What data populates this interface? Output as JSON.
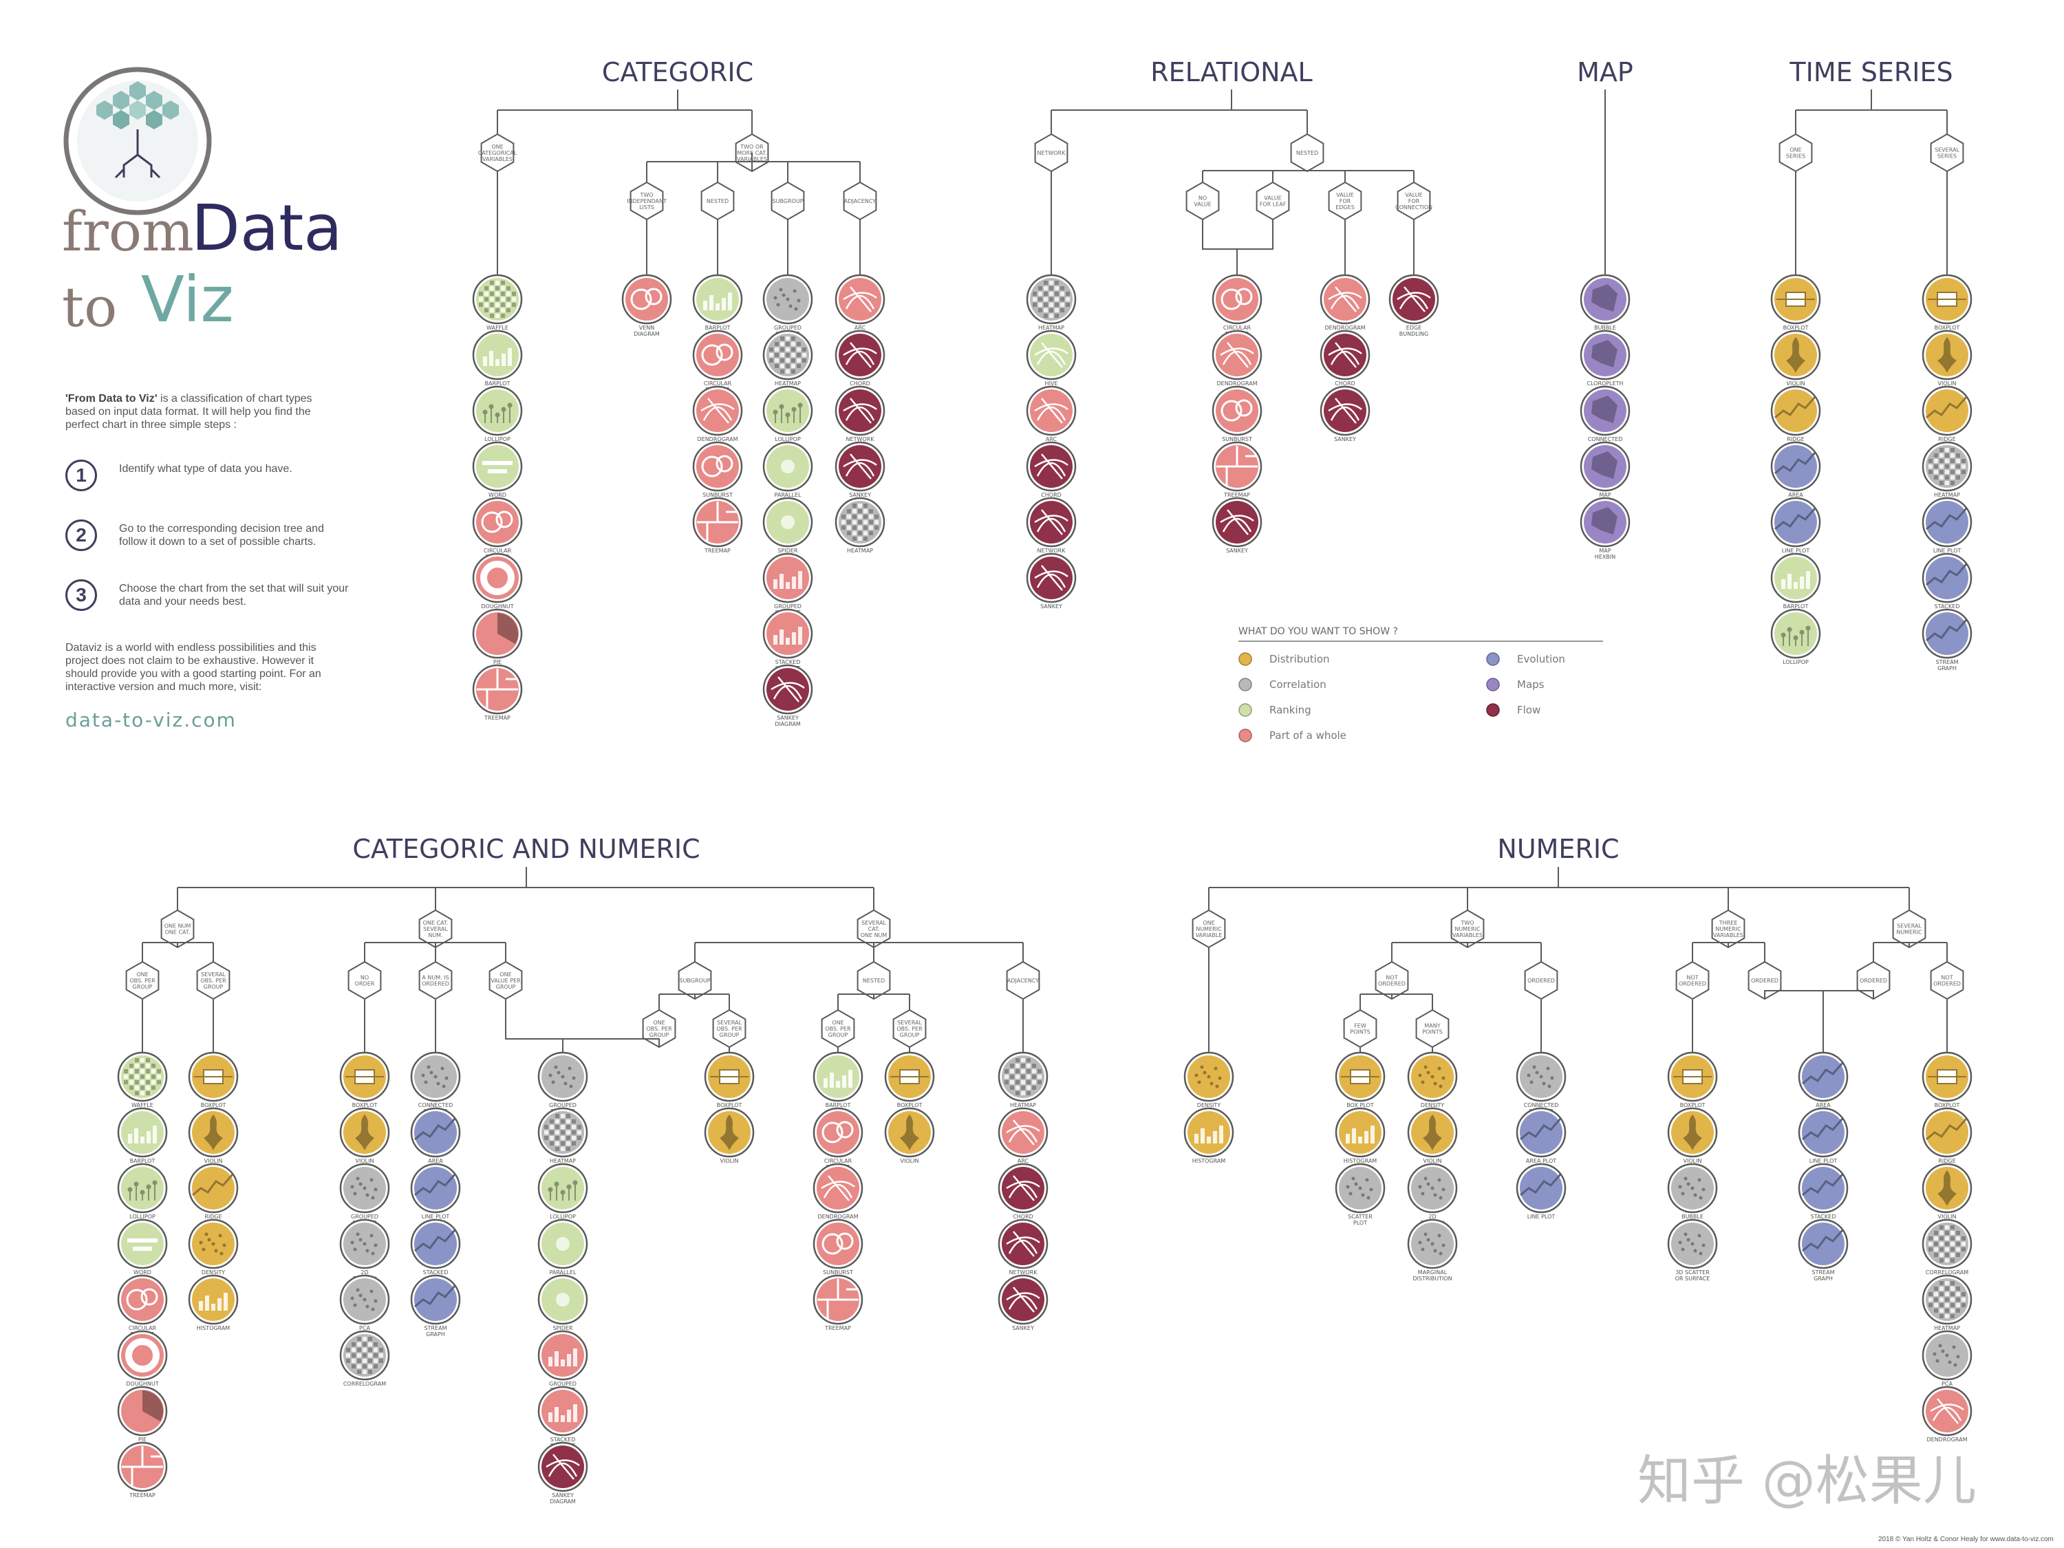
{
  "intro": {
    "title_part1": "from",
    "title_part2": "Data",
    "title_part3": "to",
    "title_part4": "Viz",
    "description_bold": "'From Data to Viz'",
    "description_rest": " is a classification of chart types based on input data format. It will help you find the perfect chart in three simple steps :",
    "steps": [
      {
        "number": "1",
        "text": "Identify what type of data you have."
      },
      {
        "number": "2",
        "text": "Go to the corresponding decision tree and follow it down to a set of possible charts."
      },
      {
        "number": "3",
        "text": "Choose the chart from the set that will suit your data and your needs best."
      }
    ],
    "closing": "Dataviz is a world with endless possibilities and this project does not claim to be exhaustive. However it should provide you with a good starting point. For an interactive version and much more, visit:",
    "site": "data-to-viz.com"
  },
  "colors": {
    "Distribution": "#e2b54a",
    "Correlation": "#b9b9b9",
    "Ranking": "#cde0a9",
    "Part of a whole": "#e78a88",
    "Evolution": "#8a94c6",
    "Maps": "#9a86c4",
    "Flow": "#8e3149"
  },
  "legend": {
    "title": "WHAT DO YOU WANT TO SHOW ?",
    "items": [
      {
        "label": "Distribution",
        "cat": "Distribution"
      },
      {
        "label": "Correlation",
        "cat": "Correlation"
      },
      {
        "label": "Ranking",
        "cat": "Ranking"
      },
      {
        "label": "Part of a whole",
        "cat": "Part of a whole"
      },
      {
        "label": "Evolution",
        "cat": "Evolution"
      },
      {
        "label": "Maps",
        "cat": "Maps"
      },
      {
        "label": "Flow",
        "cat": "Flow"
      }
    ]
  },
  "sections": [
    {
      "title": "CATEGORIC",
      "hexes": [
        [
          "ONE",
          "CATEGORICAL",
          "VARIABLES"
        ],
        [
          "TWO OR",
          "MORE CAT.",
          "VARIABLES"
        ],
        [
          "TWO",
          "INDEPENDANT",
          "LISTS"
        ],
        [
          "NESTED"
        ],
        [
          "SUBGROUP"
        ],
        [
          "ADJACENCY"
        ]
      ],
      "columns": [
        [
          [
            "WAFFLE",
            "Ranking"
          ],
          [
            "BARPLOT",
            "Ranking"
          ],
          [
            "LOLLIPOP",
            "Ranking"
          ],
          [
            "WORD CLOUD",
            "Ranking"
          ],
          [
            "CIRCULAR PACKING",
            "Part of a whole"
          ],
          [
            "DOUGHNUT",
            "Part of a whole"
          ],
          [
            "PIE",
            "Part of a whole"
          ],
          [
            "TREEMAP",
            "Part of a whole"
          ]
        ],
        [
          [
            "VENN DIAGRAM",
            "Part of a whole"
          ]
        ],
        [
          [
            "BARPLOT",
            "Ranking"
          ],
          [
            "CIRCULAR PACKING",
            "Part of a whole"
          ],
          [
            "DENDROGRAM",
            "Part of a whole"
          ],
          [
            "SUNBURST",
            "Part of a whole"
          ],
          [
            "TREEMAP",
            "Part of a whole"
          ]
        ],
        [
          [
            "GROUPED SCATTER",
            "Correlation"
          ],
          [
            "HEATMAP",
            "Correlation"
          ],
          [
            "LOLLIPOP",
            "Ranking"
          ],
          [
            "PARALLEL PLOT",
            "Ranking"
          ],
          [
            "SPIDER PLOT",
            "Ranking"
          ],
          [
            "GROUPED BARPLOT",
            "Part of a whole"
          ],
          [
            "STACKED BARPLOT",
            "Part of a whole"
          ],
          [
            "SANKEY DIAGRAM",
            "Flow"
          ]
        ],
        [
          [
            "ARC",
            "Part of a whole"
          ],
          [
            "CHORD",
            "Flow"
          ],
          [
            "NETWORK",
            "Flow"
          ],
          [
            "SANKEY",
            "Flow"
          ],
          [
            "HEATMAP",
            "Correlation"
          ]
        ]
      ]
    },
    {
      "title": "RELATIONAL",
      "hexes": [
        [
          "NETWORK"
        ],
        [
          "NESTED"
        ],
        [
          "NO",
          "VALUE"
        ],
        [
          "VALUE",
          "FOR LEAF"
        ],
        [
          "VALUE",
          "FOR",
          "EDGES"
        ],
        [
          "VALUE",
          "FOR",
          "CONNECTION"
        ]
      ],
      "columns": [
        [
          [
            "HEATMAP",
            "Correlation"
          ],
          [
            "HIVE",
            "Ranking"
          ],
          [
            "ARC",
            "Part of a whole"
          ],
          [
            "CHORD",
            "Flow"
          ],
          [
            "NETWORK",
            "Flow"
          ],
          [
            "SANKEY",
            "Flow"
          ]
        ],
        [
          [
            "CIRCULAR PACKING",
            "Part of a whole"
          ],
          [
            "DENDROGRAM",
            "Part of a whole"
          ],
          [
            "SUNBURST",
            "Part of a whole"
          ],
          [
            "TREEMAP",
            "Part of a whole"
          ],
          [
            "SANKEY",
            "Flow"
          ]
        ],
        [
          [
            "DENDROGRAM",
            "Part of a whole"
          ],
          [
            "CHORD",
            "Flow"
          ],
          [
            "SANKEY",
            "Flow"
          ]
        ],
        [
          [
            "EDGE BUNDLING",
            "Flow"
          ]
        ]
      ]
    },
    {
      "title": "MAP",
      "columns": [
        [
          [
            "BUBBLE MAP",
            "Maps"
          ],
          [
            "CLOROPLETH",
            "Maps"
          ],
          [
            "CONNECTED MAP",
            "Maps"
          ],
          [
            "MAP",
            "Maps"
          ],
          [
            "MAP HEXBIN",
            "Maps"
          ]
        ]
      ]
    },
    {
      "title": "TIME SERIES",
      "hexes": [
        [
          "ONE",
          "SERIES"
        ],
        [
          "SEVERAL",
          "SERIES"
        ]
      ],
      "columns": [
        [
          [
            "BOXPLOT",
            "Distribution"
          ],
          [
            "VIOLIN",
            "Distribution"
          ],
          [
            "RIDGE LINE",
            "Distribution"
          ],
          [
            "AREA",
            "Evolution"
          ],
          [
            "LINE PLOT",
            "Evolution"
          ],
          [
            "BARPLOT",
            "Ranking"
          ],
          [
            "LOLLIPOP",
            "Ranking"
          ]
        ],
        [
          [
            "BOXPLOT",
            "Distribution"
          ],
          [
            "VIOLIN",
            "Distribution"
          ],
          [
            "RIDGE LINE",
            "Distribution"
          ],
          [
            "HEATMAP",
            "Correlation"
          ],
          [
            "LINE PLOT",
            "Evolution"
          ],
          [
            "STACKED AREA",
            "Evolution"
          ],
          [
            "STREAM GRAPH",
            "Evolution"
          ]
        ]
      ]
    },
    {
      "title": "CATEGORIC AND NUMERIC",
      "hexes": [
        [
          "ONE NUM",
          "ONE CAT."
        ],
        [
          "ONE CAT.",
          "SEVERAL",
          "NUM."
        ],
        [
          "SEVERAL",
          "CAT.",
          "ONE NUM"
        ],
        [
          "ONE",
          "OBS. PER",
          "GROUP"
        ],
        [
          "SEVERAL",
          "OBS. PER",
          "GROUP"
        ],
        [
          "NO",
          "ORDER"
        ],
        [
          "A NUM. IS",
          "ORDERED"
        ],
        [
          "ONE",
          "VALUE PER",
          "GROUP"
        ],
        [
          "SUBGROUP"
        ],
        [
          "NESTED"
        ],
        [
          "ADJACENCY"
        ],
        [
          "ONE",
          "OBS. PER",
          "GROUP"
        ],
        [
          "SEVERAL",
          "OBS. PER",
          "GROUP"
        ],
        [
          "ONE",
          "OBS. PER",
          "GROUP"
        ],
        [
          "SEVERAL",
          "OBS. PER",
          "GROUP"
        ]
      ],
      "columns": [
        [
          [
            "WAFFLE",
            "Ranking"
          ],
          [
            "BARPLOT",
            "Ranking"
          ],
          [
            "LOLLIPOP",
            "Ranking"
          ],
          [
            "WORD CLOUD",
            "Ranking"
          ],
          [
            "CIRCULAR PACKING",
            "Part of a whole"
          ],
          [
            "DOUGHNUT",
            "Part of a whole"
          ],
          [
            "PIE",
            "Part of a whole"
          ],
          [
            "TREEMAP",
            "Part of a whole"
          ]
        ],
        [
          [
            "BOXPLOT",
            "Distribution"
          ],
          [
            "VIOLIN",
            "Distribution"
          ],
          [
            "RIDGE LINE",
            "Distribution"
          ],
          [
            "DENSITY",
            "Distribution"
          ],
          [
            "HISTOGRAM",
            "Distribution"
          ]
        ],
        [
          [
            "BOXPLOT",
            "Distribution"
          ],
          [
            "VIOLIN",
            "Distribution"
          ],
          [
            "GROUPED SCATTER",
            "Correlation"
          ],
          [
            "2D DENSITY",
            "Correlation"
          ],
          [
            "PCA",
            "Correlation"
          ],
          [
            "CORRELOGRAM",
            "Correlation"
          ]
        ],
        [
          [
            "CONNECTED SCATTER",
            "Correlation"
          ],
          [
            "AREA",
            "Evolution"
          ],
          [
            "LINE PLOT",
            "Evolution"
          ],
          [
            "STACKED AREA",
            "Evolution"
          ],
          [
            "STREAM GRAPH",
            "Evolution"
          ]
        ],
        [
          [
            "GROUPED SCATTER",
            "Correlation"
          ],
          [
            "HEATMAP",
            "Correlation"
          ],
          [
            "LOLLIPOP",
            "Ranking"
          ],
          [
            "PARALLEL PLOT",
            "Ranking"
          ],
          [
            "SPIDER PLOT",
            "Ranking"
          ],
          [
            "GROUPED BARPLOT",
            "Part of a whole"
          ],
          [
            "STACKED BARPLOT",
            "Part of a whole"
          ],
          [
            "SANKEY DIAGRAM",
            "Flow"
          ]
        ],
        [
          [
            "BOXPLOT",
            "Distribution"
          ],
          [
            "VIOLIN",
            "Distribution"
          ]
        ],
        [
          [
            "BARPLOT",
            "Ranking"
          ],
          [
            "CIRCULAR PACKING",
            "Part of a whole"
          ],
          [
            "DENDROGRAM",
            "Part of a whole"
          ],
          [
            "SUNBURST",
            "Part of a whole"
          ],
          [
            "TREEMAP",
            "Part of a whole"
          ]
        ],
        [
          [
            "BOXPLOT",
            "Distribution"
          ],
          [
            "VIOLIN",
            "Distribution"
          ]
        ],
        [
          [
            "HEATMAP",
            "Correlation"
          ],
          [
            "ARC",
            "Part of a whole"
          ],
          [
            "CHORD",
            "Flow"
          ],
          [
            "NETWORK",
            "Flow"
          ],
          [
            "SANKEY",
            "Flow"
          ]
        ]
      ]
    },
    {
      "title": "NUMERIC",
      "hexes": [
        [
          "ONE",
          "NUMERIC",
          "VARIABLE"
        ],
        [
          "TWO",
          "NUMERIC",
          "VARIABLES"
        ],
        [
          "THREE",
          "NUMERIC",
          "VARIABLES"
        ],
        [
          "SEVERAL",
          "NUMERIC"
        ],
        [
          "NOT",
          "ORDERED"
        ],
        [
          "ORDERED"
        ],
        [
          "FEW",
          "POINTS"
        ],
        [
          "MANY",
          "POINTS"
        ],
        [
          "NOT",
          "ORDERED"
        ],
        [
          "ORDERED"
        ],
        [
          "ORDERED"
        ],
        [
          "NOT",
          "ORDERED"
        ]
      ],
      "columns": [
        [
          [
            "DENSITY",
            "Distribution"
          ],
          [
            "HISTOGRAM",
            "Distribution"
          ]
        ],
        [
          [
            "BOX PLOT",
            "Distribution"
          ],
          [
            "HISTOGRAM",
            "Distribution"
          ],
          [
            "SCATTER PLOT",
            "Correlation"
          ]
        ],
        [
          [
            "DENSITY",
            "Distribution"
          ],
          [
            "VIOLIN",
            "Distribution"
          ],
          [
            "2D DENSITY",
            "Correlation"
          ],
          [
            "MARGINAL DISTRIBUTION",
            "Correlation"
          ]
        ],
        [
          [
            "CONNECTED SCATTER",
            "Correlation"
          ],
          [
            "AREA PLOT",
            "Evolution"
          ],
          [
            "LINE PLOT",
            "Evolution"
          ]
        ],
        [
          [
            "BOXPLOT",
            "Distribution"
          ],
          [
            "VIOLIN",
            "Distribution"
          ],
          [
            "BUBBLE PLOT",
            "Correlation"
          ],
          [
            "3D SCATTER OR SURFACE",
            "Correlation"
          ]
        ],
        [
          [
            "AREA",
            "Evolution"
          ],
          [
            "LINE PLOT",
            "Evolution"
          ],
          [
            "STACKED AREA",
            "Evolution"
          ],
          [
            "STREAM GRAPH",
            "Evolution"
          ]
        ],
        [
          [
            "BOXPLOT",
            "Distribution"
          ],
          [
            "RIDGE LINE",
            "Distribution"
          ],
          [
            "VIOLIN",
            "Distribution"
          ],
          [
            "CORRELOGRAM",
            "Correlation"
          ],
          [
            "HEATMAP",
            "Correlation"
          ],
          [
            "PCA",
            "Correlation"
          ],
          [
            "DENDROGRAM",
            "Part of a whole"
          ]
        ]
      ]
    }
  ],
  "credit": "2018 © Yan Holtz & Conor Healy for www.data-to-viz.com",
  "watermark": "知乎 @松果儿"
}
